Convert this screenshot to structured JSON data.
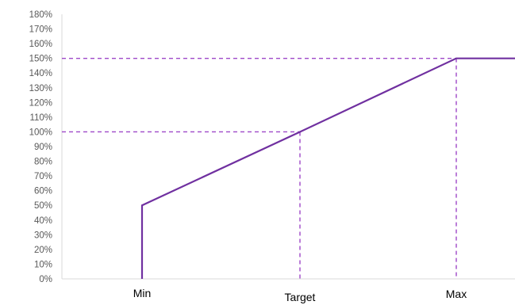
{
  "chart_data": {
    "type": "line",
    "x_categories": [
      "Min",
      "Target",
      "Max"
    ],
    "y_axis": {
      "min": 0,
      "max": 180,
      "step": 10,
      "format": "percent",
      "tick_labels": [
        "0%",
        "10%",
        "20%",
        "30%",
        "40%",
        "50%",
        "60%",
        "70%",
        "80%",
        "90%",
        "100%",
        "110%",
        "120%",
        "130%",
        "140%",
        "150%",
        "160%",
        "170%",
        "180%"
      ]
    },
    "series": [
      {
        "points": [
          {
            "x": "Min",
            "y": 0
          },
          {
            "x": "Min",
            "y": 50
          },
          {
            "x": "Target",
            "y": 100
          },
          {
            "x": "Max",
            "y": 150
          },
          {
            "x": "right edge",
            "y": 150
          }
        ]
      }
    ],
    "reference_lines": [
      {
        "type": "horizontal",
        "y": 100,
        "to": "Target"
      },
      {
        "type": "horizontal",
        "y": 150,
        "to": "Max"
      },
      {
        "type": "vertical",
        "x": "Target",
        "y_to": 100
      },
      {
        "type": "vertical",
        "x": "Max",
        "y_to": 150
      }
    ],
    "grid": false,
    "legend": "none",
    "colors": {
      "line": "#7030A0",
      "reference": "#9E48C8",
      "axis": "#D9D9D9",
      "tick_text": "#595959",
      "category_text": "#000000"
    }
  }
}
